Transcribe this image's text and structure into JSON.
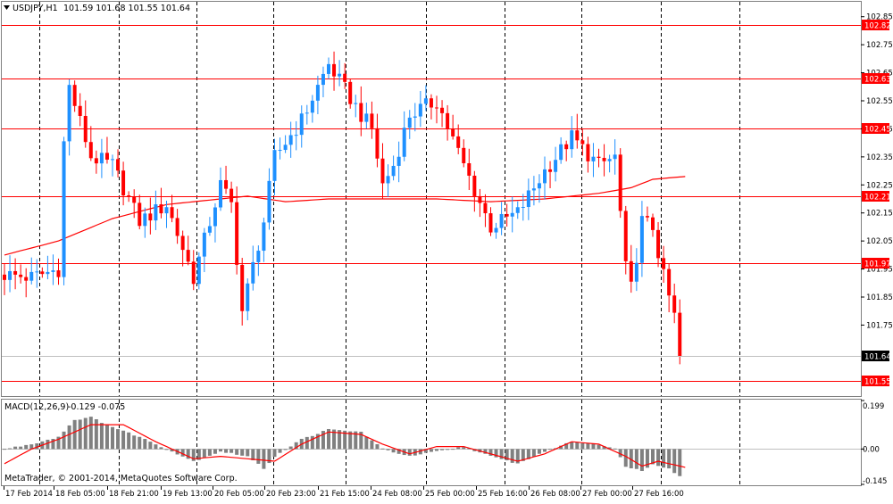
{
  "header": {
    "symbol": "USDJPY,H1",
    "ohlc": "101.59 101.68 101.55 101.64",
    "dropdown_icon": "triangle-down-icon"
  },
  "macd_label": {
    "name": "MACD(12,26,9)",
    "values": "-0.129 -0.075"
  },
  "copyright": "MetaTrader, © 2001-2014, MetaQuotes Software Corp.",
  "colors": {
    "up": "#1e90ff",
    "down": "#ff0000",
    "level": "#ff0000",
    "ma": "#ff0000",
    "histogram": "#808080",
    "signal": "#ff0000",
    "grid": "#000000",
    "frame": "#808080",
    "price_tag_text": "#ffffff",
    "current_tag_bg": "#000000"
  },
  "chart_data": [
    {
      "type": "candlestick",
      "title": "USDJPY,H1",
      "timeframe": "H1",
      "ylim": [
        101.5,
        102.9
      ],
      "y_ticks": [
        "102.85",
        "102.75",
        "102.65",
        "102.55",
        "102.45",
        "102.35",
        "102.25",
        "102.15",
        "102.05",
        "101.95",
        "101.85",
        "101.75",
        "101.64"
      ],
      "x_ticks": [
        "17 Feb 2014",
        "18 Feb 05:00",
        "18 Feb 21:00",
        "19 Feb 13:00",
        "20 Feb 05:00",
        "20 Feb 23:00",
        "21 Feb 15:00",
        "24 Feb 08:00",
        "25 Feb 00:00",
        "25 Feb 16:00",
        "26 Feb 08:00",
        "27 Feb 00:00",
        "27 Feb 16:00"
      ],
      "horizontal_levels": [
        "102.82",
        "102.63",
        "102.45",
        "102.21",
        "101.97",
        "101.55"
      ],
      "current_price": "101.64",
      "candle_count": 126,
      "moving_average": {
        "x": [
          0,
          10,
          20,
          30,
          45,
          52,
          60,
          70,
          80,
          90,
          100,
          110,
          116,
          120,
          126
        ],
        "y": [
          102.0,
          102.05,
          102.13,
          102.18,
          102.21,
          102.19,
          102.2,
          102.2,
          102.2,
          102.19,
          102.2,
          102.22,
          102.24,
          102.27,
          102.28
        ]
      },
      "close_path": {
        "x": [
          0,
          5,
          10,
          11,
          12,
          16,
          20,
          25,
          30,
          35,
          40,
          42,
          44,
          48,
          50,
          55,
          60,
          66,
          68,
          70,
          72,
          75,
          80,
          85,
          90,
          95,
          100,
          105,
          110,
          113,
          115,
          116,
          118,
          120,
          122,
          124,
          126
        ],
        "y": [
          101.93,
          101.92,
          101.95,
          102.4,
          102.6,
          102.35,
          102.32,
          102.12,
          102.18,
          101.92,
          102.25,
          102.18,
          101.8,
          102.12,
          102.35,
          102.48,
          102.68,
          102.5,
          102.45,
          102.25,
          102.32,
          102.5,
          102.55,
          102.32,
          102.1,
          102.15,
          102.3,
          102.42,
          102.32,
          102.35,
          101.95,
          101.88,
          102.12,
          102.1,
          101.92,
          101.78,
          101.64
        ]
      }
    },
    {
      "type": "bar",
      "title": "MACD(12,26,9)",
      "ylim": [
        -0.145,
        0.199
      ],
      "y_ticks": [
        "0.199",
        "0.00",
        "-0.145"
      ],
      "macd_values": "-0.129 -0.075",
      "histogram_path": {
        "x": [
          0,
          5,
          10,
          13,
          16,
          20,
          25,
          30,
          35,
          40,
          45,
          48,
          50,
          55,
          60,
          66,
          70,
          75,
          80,
          85,
          90,
          95,
          100,
          105,
          110,
          113,
          115,
          118,
          120,
          123,
          126
        ],
        "y": [
          0.0,
          0.02,
          0.05,
          0.12,
          0.13,
          0.09,
          0.05,
          0.0,
          -0.05,
          -0.01,
          -0.03,
          -0.08,
          -0.03,
          0.04,
          0.08,
          0.07,
          0.0,
          -0.03,
          -0.01,
          0.01,
          -0.03,
          -0.06,
          -0.01,
          0.03,
          0.02,
          0.0,
          -0.07,
          -0.09,
          -0.06,
          -0.08,
          -0.129
        ]
      },
      "signal_path": {
        "x": [
          0,
          5,
          10,
          16,
          22,
          28,
          35,
          40,
          45,
          50,
          55,
          60,
          66,
          70,
          75,
          80,
          85,
          90,
          95,
          100,
          105,
          110,
          115,
          118,
          121,
          126
        ],
        "y": [
          -0.06,
          0.0,
          0.04,
          0.1,
          0.1,
          0.03,
          -0.04,
          -0.03,
          -0.04,
          -0.05,
          0.02,
          0.07,
          0.06,
          0.02,
          -0.02,
          0.01,
          0.01,
          -0.02,
          -0.05,
          -0.02,
          0.03,
          0.02,
          -0.03,
          -0.07,
          -0.05,
          -0.075
        ]
      }
    }
  ]
}
